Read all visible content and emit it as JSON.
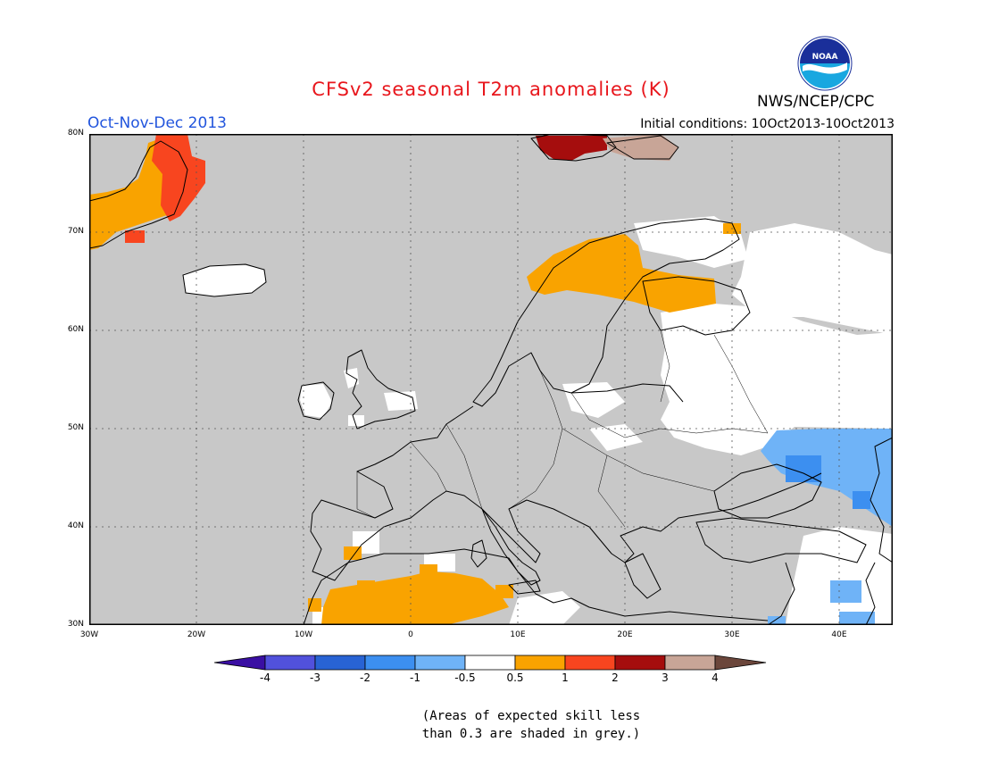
{
  "header": {
    "title": "CFSv2 seasonal T2m anomalies (K)",
    "period": "Oct-Nov-Dec 2013",
    "initial_conditions": "Initial conditions: 10Oct2013-10Oct2013",
    "agency": "NWS/NCEP/CPC",
    "logo_text": "NOAA"
  },
  "map": {
    "lat_labels": [
      "80N",
      "70N",
      "60N",
      "50N",
      "40N",
      "30N"
    ],
    "lon_labels": [
      "30W",
      "20W",
      "10W",
      "0",
      "10E",
      "20E",
      "30E",
      "40E"
    ],
    "colors": {
      "background_grey": "#c8c8c8",
      "white": "#ffffff",
      "orange": "#f9a300",
      "red_orange": "#f8451f",
      "dark_red": "#a50d0d",
      "tan": "#c8a597",
      "light_blue": "#6fb3f7",
      "blue": "#3c8ff0"
    }
  },
  "colorbar": {
    "labels": [
      "-4",
      "-3",
      "-2",
      "-1",
      "-0.5",
      "0.5",
      "1",
      "2",
      "3",
      "4"
    ],
    "colors": [
      "#3a0fa3",
      "#5151dc",
      "#2863d4",
      "#3c8ff0",
      "#6fb3f7",
      "#ffffff",
      "#f9a300",
      "#f8451f",
      "#a50d0d",
      "#c8a597",
      "#6b463b"
    ]
  },
  "note": {
    "line1": "(Areas of expected skill less",
    "line2": "than 0.3 are shaded in grey.)"
  }
}
